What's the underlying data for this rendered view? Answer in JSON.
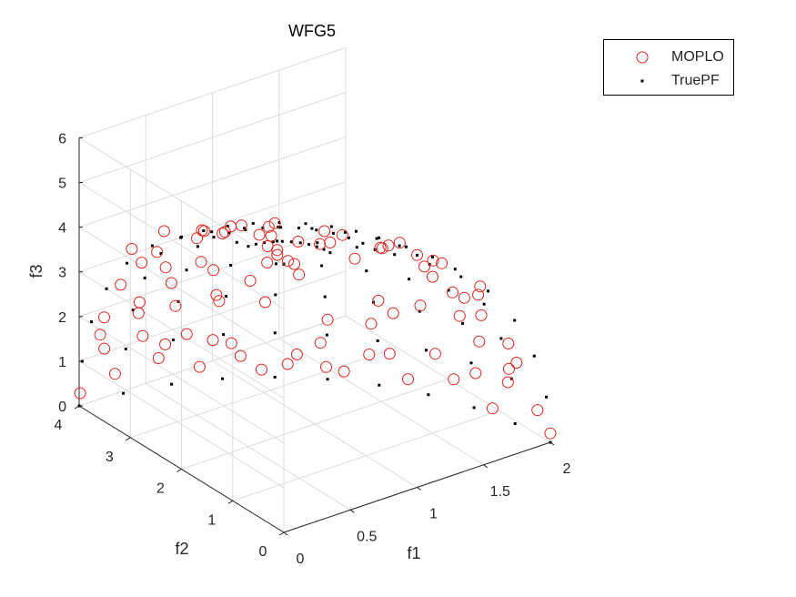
{
  "chart_data": {
    "type": "scatter",
    "title": "WFG5",
    "xlabel": "f1",
    "ylabel": "f2",
    "zlabel": "f3",
    "xlim": [
      0,
      2
    ],
    "ylim": [
      0,
      4
    ],
    "zlim": [
      0,
      6
    ],
    "xticks": [
      "0",
      "0.5",
      "1",
      "1.5",
      "2"
    ],
    "yticks": [
      "0",
      "1",
      "2",
      "3",
      "4"
    ],
    "zticks": [
      "0",
      "1",
      "2",
      "3",
      "4",
      "5",
      "6"
    ],
    "grid": true,
    "box": "3d",
    "legend_position": "top-right",
    "surface": "positive octant of ellipsoid (f1/2)^2 + (f2/4)^2 + (f3/6)^2 = 1",
    "series": [
      {
        "name": "MOPLO",
        "marker": "open-circle",
        "color": "#e0241c",
        "points": [
          [
            0.07,
            0.31,
            5.92
          ],
          [
            0.15,
            0.52,
            5.8
          ],
          [
            0.32,
            1.08,
            5.55
          ],
          [
            0.5,
            1.6,
            5.2
          ],
          [
            0.7,
            2.0,
            4.8
          ],
          [
            0.12,
            1.51,
            5.5
          ],
          [
            0.28,
            2.33,
            4.83
          ],
          [
            0.45,
            2.87,
            4.1
          ],
          [
            0.2,
            3.0,
            3.95
          ],
          [
            0.1,
            3.45,
            3.0
          ],
          [
            0.35,
            3.22,
            3.3
          ],
          [
            0.6,
            3.18,
            3.2
          ],
          [
            0.08,
            3.72,
            2.1
          ],
          [
            0.3,
            3.6,
            2.3
          ],
          [
            0.55,
            3.55,
            2.0
          ],
          [
            0.8,
            3.4,
            2.1
          ],
          [
            0.15,
            3.9,
            1.2
          ],
          [
            0.4,
            3.8,
            1.3
          ],
          [
            0.7,
            3.72,
            1.1
          ],
          [
            1.0,
            3.45,
            0.5
          ],
          [
            0.25,
            3.95,
            0.5
          ],
          [
            0.55,
            3.88,
            0.6
          ],
          [
            0.85,
            3.6,
            0.9
          ],
          [
            0.95,
            2.8,
            3.1
          ],
          [
            0.8,
            2.4,
            3.9
          ],
          [
            1.0,
            1.9,
            4.1
          ],
          [
            0.9,
            1.2,
            4.9
          ],
          [
            1.1,
            0.6,
            4.95
          ],
          [
            1.3,
            0.3,
            4.5
          ],
          [
            1.2,
            1.2,
            4.3
          ],
          [
            1.3,
            2.0,
            3.4
          ],
          [
            1.15,
            2.7,
            2.7
          ],
          [
            1.05,
            3.1,
            1.9
          ],
          [
            1.25,
            2.4,
            1.8
          ],
          [
            1.4,
            1.8,
            2.5
          ],
          [
            1.5,
            1.0,
            3.5
          ],
          [
            1.65,
            0.5,
            3.3
          ],
          [
            1.75,
            0.7,
            2.6
          ],
          [
            1.6,
            1.5,
            2.4
          ],
          [
            1.5,
            2.2,
            1.6
          ],
          [
            1.35,
            2.8,
            0.9
          ],
          [
            1.6,
            2.1,
            0.9
          ],
          [
            1.75,
            1.6,
            1.1
          ],
          [
            1.85,
            1.0,
            1.7
          ],
          [
            1.9,
            0.4,
            1.6
          ],
          [
            1.95,
            0.7,
            0.9
          ],
          [
            1.85,
            1.5,
            0.5
          ],
          [
            1.98,
            0.2,
            0.6
          ],
          [
            2.0,
            0.0,
            0.2
          ],
          [
            1.95,
            1.0,
            0.1
          ],
          [
            1.7,
            2.0,
            0.3
          ],
          [
            1.45,
            2.6,
            0.3
          ],
          [
            1.2,
            3.05,
            0.4
          ],
          [
            1.1,
            3.3,
            0.2
          ],
          [
            0.6,
            2.6,
            4.4
          ],
          [
            0.45,
            2.0,
            5.0
          ],
          [
            0.25,
            1.8,
            5.2
          ],
          [
            0.1,
            2.6,
            4.8
          ],
          [
            0.05,
            3.1,
            4.1
          ],
          [
            0.5,
            3.5,
            2.6
          ],
          [
            0.9,
            3.0,
            2.6
          ],
          [
            1.3,
            1.5,
            4.0
          ],
          [
            1.55,
            0.2,
            3.8
          ],
          [
            1.8,
            0.3,
            2.2
          ],
          [
            1.9,
            1.2,
            0.8
          ],
          [
            1.7,
            0.9,
            2.9
          ],
          [
            0.75,
            3.6,
            0.4
          ],
          [
            0.0,
            3.98,
            0.3
          ],
          [
            0.05,
            0.05,
            5.99
          ],
          [
            0.5,
            0.4,
            5.7
          ],
          [
            0.9,
            0.3,
            5.3
          ],
          [
            1.0,
            0.0,
            5.2
          ],
          [
            1.4,
            0.9,
            3.9
          ],
          [
            0.3,
            0.5,
            5.85
          ],
          [
            0.65,
            0.9,
            5.45
          ],
          [
            0.2,
            1.0,
            5.75
          ],
          [
            0.4,
            2.6,
            4.5
          ],
          [
            0.2,
            3.3,
            3.5
          ],
          [
            0.7,
            3.2,
            2.9
          ],
          [
            1.6,
            2.5,
            0.6
          ],
          [
            1.25,
            3.0,
            0.6
          ],
          [
            1.0,
            2.4,
            3.3
          ],
          [
            0.55,
            3.75,
            1.0
          ],
          [
            0.95,
            3.5,
            0.8
          ],
          [
            1.45,
            2.95,
            0.15
          ],
          [
            1.55,
            1.9,
            2.0
          ],
          [
            1.78,
            1.2,
            2.2
          ],
          [
            1.92,
            0.6,
            1.3
          ],
          [
            1.65,
            1.0,
            3.0
          ],
          [
            1.35,
            0.6,
            4.3
          ],
          [
            0.1,
            3.85,
            1.6
          ],
          [
            0.35,
            3.75,
            1.9
          ],
          [
            0.8,
            3.35,
            2.0
          ]
        ]
      },
      {
        "name": "TruePF",
        "marker": "dot",
        "color": "#000000",
        "grid_theta_deg": [
          0,
          10,
          20,
          30,
          40,
          50,
          60,
          70,
          80,
          90
        ],
        "grid_phi_deg": [
          0,
          9,
          18,
          27,
          36,
          45,
          54,
          63,
          72,
          81,
          90
        ]
      }
    ]
  }
}
